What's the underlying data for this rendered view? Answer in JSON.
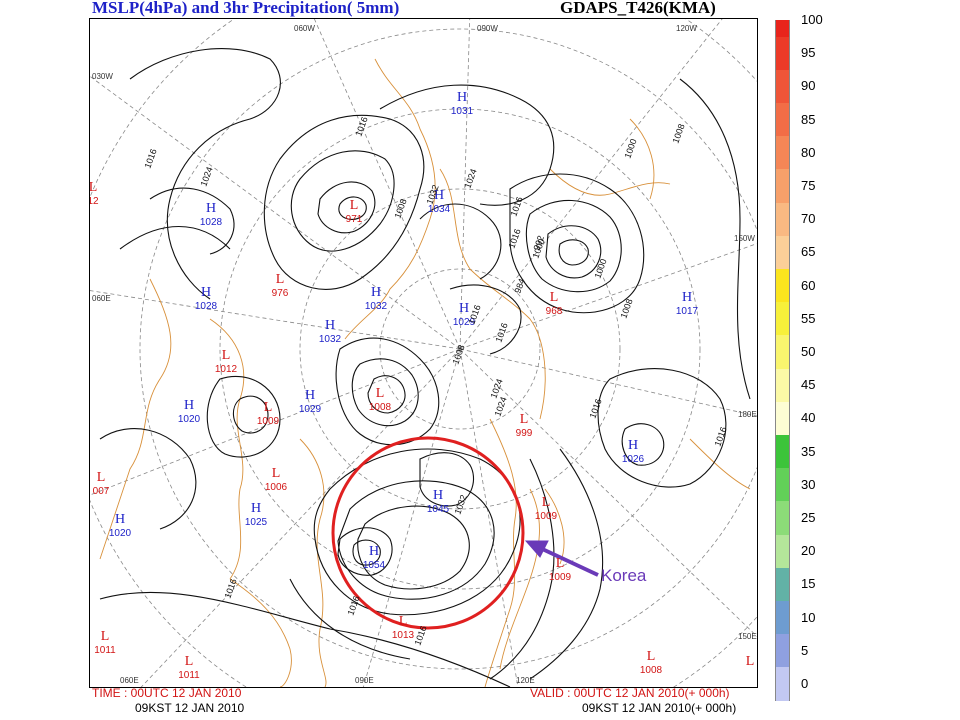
{
  "header": {
    "title_left": "MSLP(4hPa) and  3hr Precipitation( 5mm)",
    "title_right": "GDAPS_T426(KMA)"
  },
  "footer": {
    "time_left": "TIME : 00UTC 12 JAN 2010",
    "kst_left": "09KST 12 JAN 2010",
    "valid_right": "VALID : 00UTC 12 JAN 2010(+ 000h)",
    "kst_right": "09KST 12 JAN 2010(+ 000h)"
  },
  "colorbar": {
    "labels": [
      "100",
      "95",
      "90",
      "85",
      "80",
      "75",
      "70",
      "65",
      "60",
      "55",
      "50",
      "45",
      "40",
      "35",
      "30",
      "25",
      "20",
      "15",
      "10",
      "5",
      "0"
    ],
    "colors": [
      "#e8241c",
      "#ec3a28",
      "#ef5538",
      "#f26d46",
      "#f58656",
      "#f7a06a",
      "#f9b982",
      "#fbcf98",
      "#fbe51e",
      "#f7f03a",
      "#f9f56e",
      "#fbf9a6",
      "#fdfdd4",
      "#3cc43a",
      "#62d058",
      "#8cdc78",
      "#b4e69a",
      "#62b2a6",
      "#6e9cd0",
      "#8fa0e0",
      "#c2c8f2"
    ]
  },
  "annotation": {
    "korea_label": "Korea",
    "circle_color": "#e02020",
    "arrow_color": "#6a3ab8"
  },
  "map": {
    "grid_labels": [
      "060W",
      "090W",
      "120W",
      "030W",
      "150W",
      "060E",
      "180E",
      "150E",
      "060E",
      "090E",
      "120E"
    ],
    "centers": [
      {
        "type": "H",
        "value": "1031",
        "color": "#1e22c8"
      },
      {
        "type": "H",
        "value": "1028",
        "color": "#1e22c8"
      },
      {
        "type": "H",
        "value": "1034",
        "color": "#1e22c8"
      },
      {
        "type": "H",
        "value": "1028",
        "color": "#1e22c8"
      },
      {
        "type": "H",
        "value": "1032",
        "color": "#1e22c8"
      },
      {
        "type": "H",
        "value": "1032",
        "color": "#1e22c8"
      },
      {
        "type": "H",
        "value": "1029",
        "color": "#1e22c8"
      },
      {
        "type": "H",
        "value": "1017",
        "color": "#1e22c8"
      },
      {
        "type": "H",
        "value": "1020",
        "color": "#1e22c8"
      },
      {
        "type": "H",
        "value": "1029",
        "color": "#1e22c8"
      },
      {
        "type": "H",
        "value": "1026",
        "color": "#1e22c8"
      },
      {
        "type": "H",
        "value": "1045",
        "color": "#1e22c8"
      },
      {
        "type": "H",
        "value": "1025",
        "color": "#1e22c8"
      },
      {
        "type": "H",
        "value": "1020",
        "color": "#1e22c8"
      },
      {
        "type": "H",
        "value": "1054",
        "color": "#1e22c8"
      },
      {
        "type": "L",
        "value": "12",
        "color": "#d21414"
      },
      {
        "type": "L",
        "value": "971",
        "color": "#d21414"
      },
      {
        "type": "L",
        "value": "976",
        "color": "#d21414"
      },
      {
        "type": "L",
        "value": "968",
        "color": "#d21414"
      },
      {
        "type": "L",
        "value": "1012",
        "color": "#d21414"
      },
      {
        "type": "L",
        "value": "1009",
        "color": "#d21414"
      },
      {
        "type": "L",
        "value": "1008",
        "color": "#d21414"
      },
      {
        "type": "L",
        "value": "999",
        "color": "#d21414"
      },
      {
        "type": "L",
        "value": "1006",
        "color": "#d21414"
      },
      {
        "type": "L",
        "value": "007",
        "color": "#d21414"
      },
      {
        "type": "L",
        "value": "1009",
        "color": "#d21414"
      },
      {
        "type": "L",
        "value": "1009",
        "color": "#d21414"
      },
      {
        "type": "L",
        "value": "1013",
        "color": "#d21414"
      },
      {
        "type": "L",
        "value": "1011",
        "color": "#d21414"
      },
      {
        "type": "L",
        "value": "1011",
        "color": "#d21414"
      },
      {
        "type": "L",
        "value": "1008",
        "color": "#d21414"
      },
      {
        "type": "L",
        "value": "",
        "color": "#d21414"
      }
    ],
    "contour_labels": [
      "1016",
      "1024",
      "1016",
      "1008",
      "1016",
      "1024",
      "1016",
      "1032",
      "1000",
      "992",
      "1000",
      "1008",
      "984",
      "1016",
      "1024",
      "1008",
      "1016",
      "1024",
      "1016",
      "1032",
      "1016",
      "1016",
      "1016",
      "1016",
      "1008",
      "1000"
    ]
  }
}
